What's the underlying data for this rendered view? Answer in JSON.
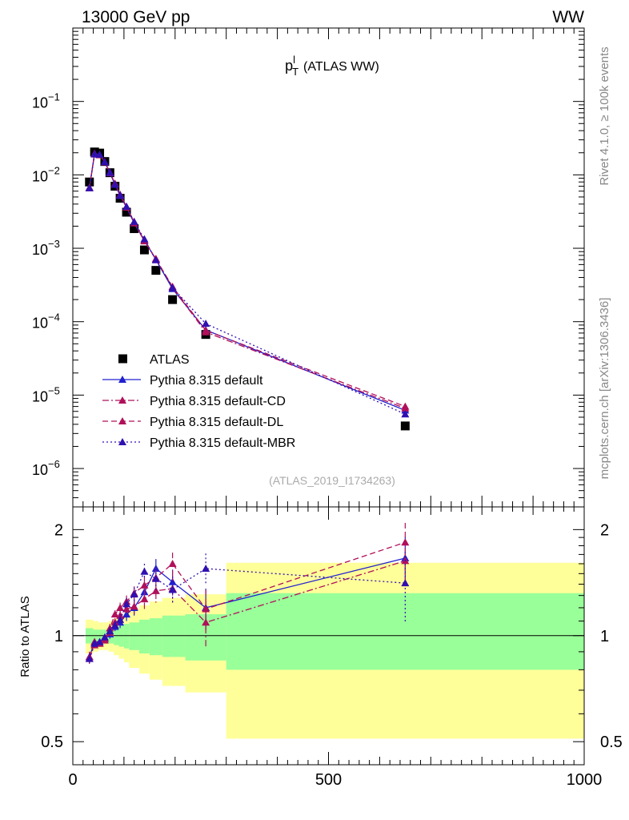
{
  "header": {
    "energy_label": "13000 GeV pp",
    "process_label": "WW"
  },
  "side_labels": {
    "rivet": "Rivet 4.1.0, ≥ 100k events",
    "mcplots": "mcplots.cern.ch [arXiv:1306.3436]"
  },
  "chart_data": [
    {
      "type": "line",
      "role": "main",
      "title": "p_T^l (ATLAS WW)",
      "title_main": "p",
      "title_sub": "T",
      "title_sup": "l",
      "title_rest": "(ATLAS WW)",
      "watermark": "(ATLAS_2019_I1734263)",
      "xlim": [
        0,
        1000
      ],
      "ylim": [
        3e-07,
        1
      ],
      "yscale": "log",
      "ytick_labels": [
        {
          "value": 1e-06,
          "base": "10",
          "exp": "−6"
        },
        {
          "value": 1e-05,
          "base": "10",
          "exp": "−5"
        },
        {
          "value": 0.0001,
          "base": "10",
          "exp": "−4"
        },
        {
          "value": 0.001,
          "base": "10",
          "exp": "−3"
        },
        {
          "value": 0.01,
          "base": "10",
          "exp": "−2"
        },
        {
          "value": 0.1,
          "base": "10",
          "exp": "−1"
        }
      ],
      "legend_position": "lower-left",
      "x": [
        32.5,
        42.5,
        52.5,
        62.5,
        72.5,
        82.5,
        92.5,
        105,
        120,
        140,
        162.5,
        195,
        260,
        650
      ],
      "series": [
        {
          "name": "ATLAS",
          "marker": "square",
          "color": "#000000",
          "dash": "none",
          "values": [
            0.008,
            0.0205,
            0.0198,
            0.0152,
            0.0107,
            0.007,
            0.0048,
            0.0031,
            0.00185,
            0.00095,
            0.0005,
            0.0002,
            6.7e-05,
            3.8e-06
          ]
        },
        {
          "name": "Pythia 8.315 default",
          "marker": "triangle",
          "color": "#2020d0",
          "dash": "solid",
          "values": [
            0.0067,
            0.0195,
            0.0188,
            0.015,
            0.0106,
            0.0074,
            0.0052,
            0.0036,
            0.0022,
            0.00128,
            0.0007,
            0.00028,
            7.7e-05,
            6.2e-06
          ]
        },
        {
          "name": "Pythia 8.315 default-CD",
          "marker": "triangle",
          "color": "#b0105a",
          "dash": "dashdot",
          "values": [
            0.0066,
            0.0192,
            0.0186,
            0.0149,
            0.0108,
            0.0076,
            0.0054,
            0.0037,
            0.0022,
            0.00125,
            0.00072,
            0.00029,
            7.2e-05,
            6.6e-06
          ]
        },
        {
          "name": "Pythia 8.315 default-DL",
          "marker": "triangle",
          "color": "#b0105a",
          "dash": "dashed",
          "values": [
            0.0067,
            0.0194,
            0.0187,
            0.0149,
            0.0107,
            0.0075,
            0.0053,
            0.0036,
            0.0023,
            0.00128,
            0.00071,
            0.0003,
            7.6e-05,
            7e-06
          ]
        },
        {
          "name": "Pythia 8.315 default-MBR",
          "marker": "triangle",
          "color": "#3010b0",
          "dash": "dotted",
          "values": [
            0.0066,
            0.0191,
            0.0189,
            0.015,
            0.0108,
            0.0074,
            0.0053,
            0.0037,
            0.0023,
            0.00133,
            0.00069,
            0.00029,
            9.4e-05,
            5.5e-06
          ]
        }
      ]
    },
    {
      "type": "line",
      "role": "ratio",
      "ylabel": "Ratio to ATLAS",
      "xlim": [
        0,
        1000
      ],
      "ylim": [
        0.43,
        2.32
      ],
      "yscale": "log",
      "ytick_labels": [
        {
          "value": 0.5,
          "label": "0.5"
        },
        {
          "value": 1,
          "label": "1"
        },
        {
          "value": 2,
          "label": "2"
        }
      ],
      "xtick_labels": [
        {
          "value": 0,
          "label": "0"
        },
        {
          "value": 500,
          "label": "500"
        },
        {
          "value": 1000,
          "label": "1000"
        }
      ],
      "bins": [
        {
          "lo": 25,
          "hi": 40,
          "yellow": [
            0.89,
            1.11
          ],
          "green": [
            0.95,
            1.05
          ]
        },
        {
          "lo": 40,
          "hi": 50,
          "yellow": [
            0.9,
            1.1
          ],
          "green": [
            0.96,
            1.04
          ]
        },
        {
          "lo": 50,
          "hi": 60,
          "yellow": [
            0.91,
            1.09
          ],
          "green": [
            0.96,
            1.04
          ]
        },
        {
          "lo": 60,
          "hi": 70,
          "yellow": [
            0.91,
            1.09
          ],
          "green": [
            0.96,
            1.04
          ]
        },
        {
          "lo": 70,
          "hi": 80,
          "yellow": [
            0.9,
            1.1
          ],
          "green": [
            0.95,
            1.05
          ]
        },
        {
          "lo": 80,
          "hi": 90,
          "yellow": [
            0.88,
            1.12
          ],
          "green": [
            0.94,
            1.06
          ]
        },
        {
          "lo": 90,
          "hi": 100,
          "yellow": [
            0.86,
            1.14
          ],
          "green": [
            0.93,
            1.07
          ]
        },
        {
          "lo": 100,
          "hi": 110,
          "yellow": [
            0.84,
            1.16
          ],
          "green": [
            0.92,
            1.08
          ]
        },
        {
          "lo": 110,
          "hi": 130,
          "yellow": [
            0.81,
            1.19
          ],
          "green": [
            0.91,
            1.09
          ]
        },
        {
          "lo": 130,
          "hi": 150,
          "yellow": [
            0.78,
            1.22
          ],
          "green": [
            0.89,
            1.11
          ]
        },
        {
          "lo": 150,
          "hi": 175,
          "yellow": [
            0.75,
            1.25
          ],
          "green": [
            0.88,
            1.12
          ]
        },
        {
          "lo": 175,
          "hi": 220,
          "yellow": [
            0.72,
            1.28
          ],
          "green": [
            0.87,
            1.14
          ]
        },
        {
          "lo": 220,
          "hi": 300,
          "yellow": [
            0.69,
            1.31
          ],
          "green": [
            0.85,
            1.15
          ]
        },
        {
          "lo": 300,
          "hi": 1000,
          "yellow": [
            0.51,
            1.61
          ],
          "green": [
            0.8,
            1.32
          ]
        }
      ],
      "x": [
        32.5,
        42.5,
        52.5,
        62.5,
        72.5,
        82.5,
        92.5,
        105,
        120,
        140,
        162.5,
        195,
        260,
        650
      ],
      "series": [
        {
          "name": "Pythia 8.315 default",
          "color": "#2020d0",
          "dash": "solid",
          "values": [
            0.87,
            0.96,
            0.96,
            0.98,
            1.01,
            1.06,
            1.09,
            1.15,
            1.2,
            1.33,
            1.55,
            1.42,
            1.2,
            1.66
          ],
          "err": [
            0.03,
            0.02,
            0.02,
            0.02,
            0.03,
            0.03,
            0.04,
            0.05,
            0.06,
            0.08,
            0.1,
            0.12,
            0.16,
            0.25
          ]
        },
        {
          "name": "Pythia 8.315 default-CD",
          "color": "#b0105a",
          "dash": "dashdot",
          "values": [
            0.86,
            0.94,
            0.95,
            0.97,
            1.02,
            1.09,
            1.14,
            1.19,
            1.21,
            1.27,
            1.34,
            1.36,
            1.09,
            1.63
          ],
          "err": [
            0.03,
            0.02,
            0.02,
            0.02,
            0.03,
            0.03,
            0.04,
            0.05,
            0.06,
            0.08,
            0.1,
            0.12,
            0.16,
            0.25
          ]
        },
        {
          "name": "Pythia 8.315 default-DL",
          "color": "#b0105a",
          "dash": "dashed",
          "values": [
            0.87,
            0.96,
            0.95,
            0.98,
            1.05,
            1.15,
            1.2,
            1.25,
            1.32,
            1.39,
            1.46,
            1.6,
            1.19,
            1.84
          ],
          "err": [
            0.03,
            0.02,
            0.02,
            0.02,
            0.03,
            0.03,
            0.04,
            0.05,
            0.06,
            0.08,
            0.1,
            0.12,
            0.16,
            0.25
          ]
        },
        {
          "name": "Pythia 8.315 default-MBR",
          "color": "#3010b0",
          "dash": "dotted",
          "values": [
            0.86,
            0.95,
            0.96,
            0.99,
            1.03,
            1.07,
            1.11,
            1.23,
            1.31,
            1.52,
            1.45,
            1.35,
            1.55,
            1.41
          ],
          "err": [
            0.03,
            0.02,
            0.02,
            0.02,
            0.03,
            0.03,
            0.04,
            0.05,
            0.06,
            0.08,
            0.1,
            0.12,
            0.16,
            0.32
          ]
        }
      ]
    }
  ]
}
